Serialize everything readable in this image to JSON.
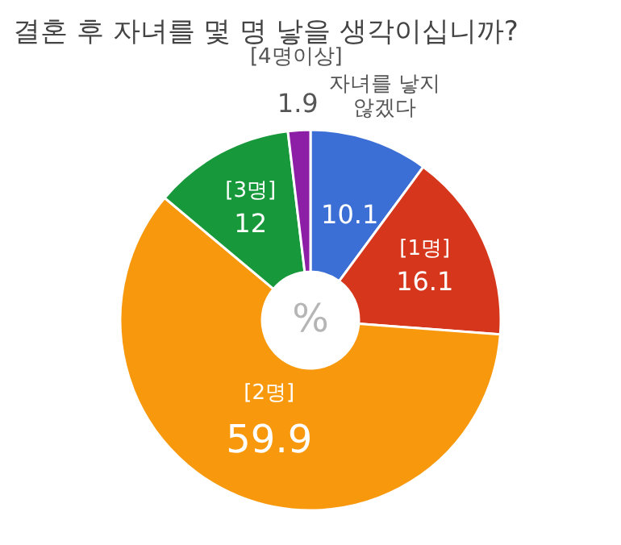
{
  "chart_data": {
    "type": "donut",
    "title": "결혼 후 자녀를 몇 명 낳을 생각이십니까?",
    "categories": [
      "자녀를 낳지 않겠다",
      "[1명]",
      "[2명]",
      "[3명]",
      "[4명이상]"
    ],
    "values": [
      10.1,
      16.1,
      59.9,
      12,
      1.9
    ],
    "colors": [
      "#3c6fd5",
      "#d6361b",
      "#f8990d",
      "#17993b",
      "#8c1fa6"
    ],
    "data_labels": true,
    "annotations": [
      "%"
    ]
  }
}
